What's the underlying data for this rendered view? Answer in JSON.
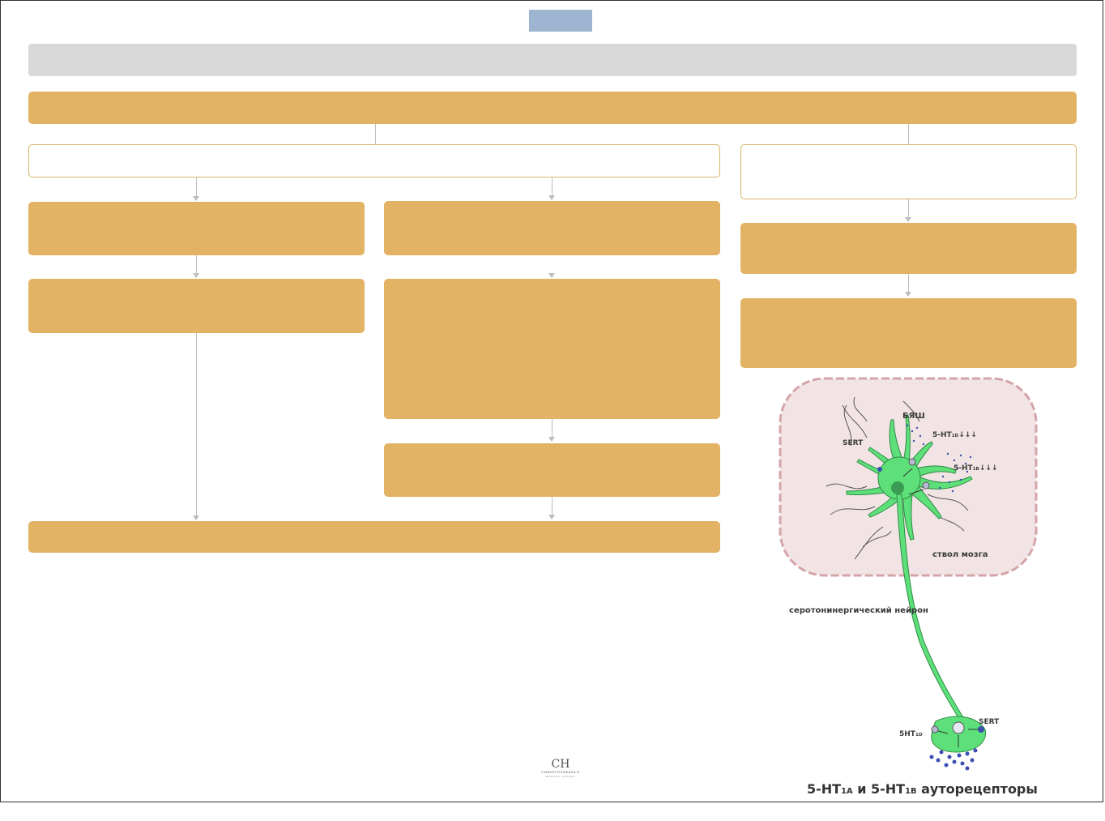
{
  "illustration": {
    "labels": {
      "bash": "БЯШ",
      "receptor_1d_base": "5-HT",
      "receptor_1d_sub": "1D",
      "receptor_1d_arrows": "↓↓↓",
      "receptor_1b_base": "5-HT",
      "receptor_1b_sub": "1B",
      "receptor_1b_arrows": "↓↓↓",
      "sert_top": "SERT",
      "brainstem": "ствол мозга",
      "neuron": "серотонинергический нейрон",
      "sert_bottom": "SERT",
      "terminal_receptor_base": "5HT",
      "terminal_receptor_sub": "1D"
    },
    "caption": {
      "p1": "5-HT",
      "s1": "1A",
      "p2": " и 5-HT",
      "s2": "1B",
      "p3": " ауторецепторы"
    },
    "colors": {
      "neuron": "#5de07a",
      "brainstem_fill": "#f2e4e4",
      "brainstem_border": "#d4a5a8",
      "dots": "#3b4fb0"
    }
  },
  "logo": {
    "mark": "CH",
    "line1": "CHRISTOVSKAYA'S",
    "line2": "MEDICAL SCHOOL"
  },
  "colors": {
    "orange_box": "#e3b365",
    "title_box": "#9db5d0",
    "gray_bar": "#d9d9d9"
  }
}
